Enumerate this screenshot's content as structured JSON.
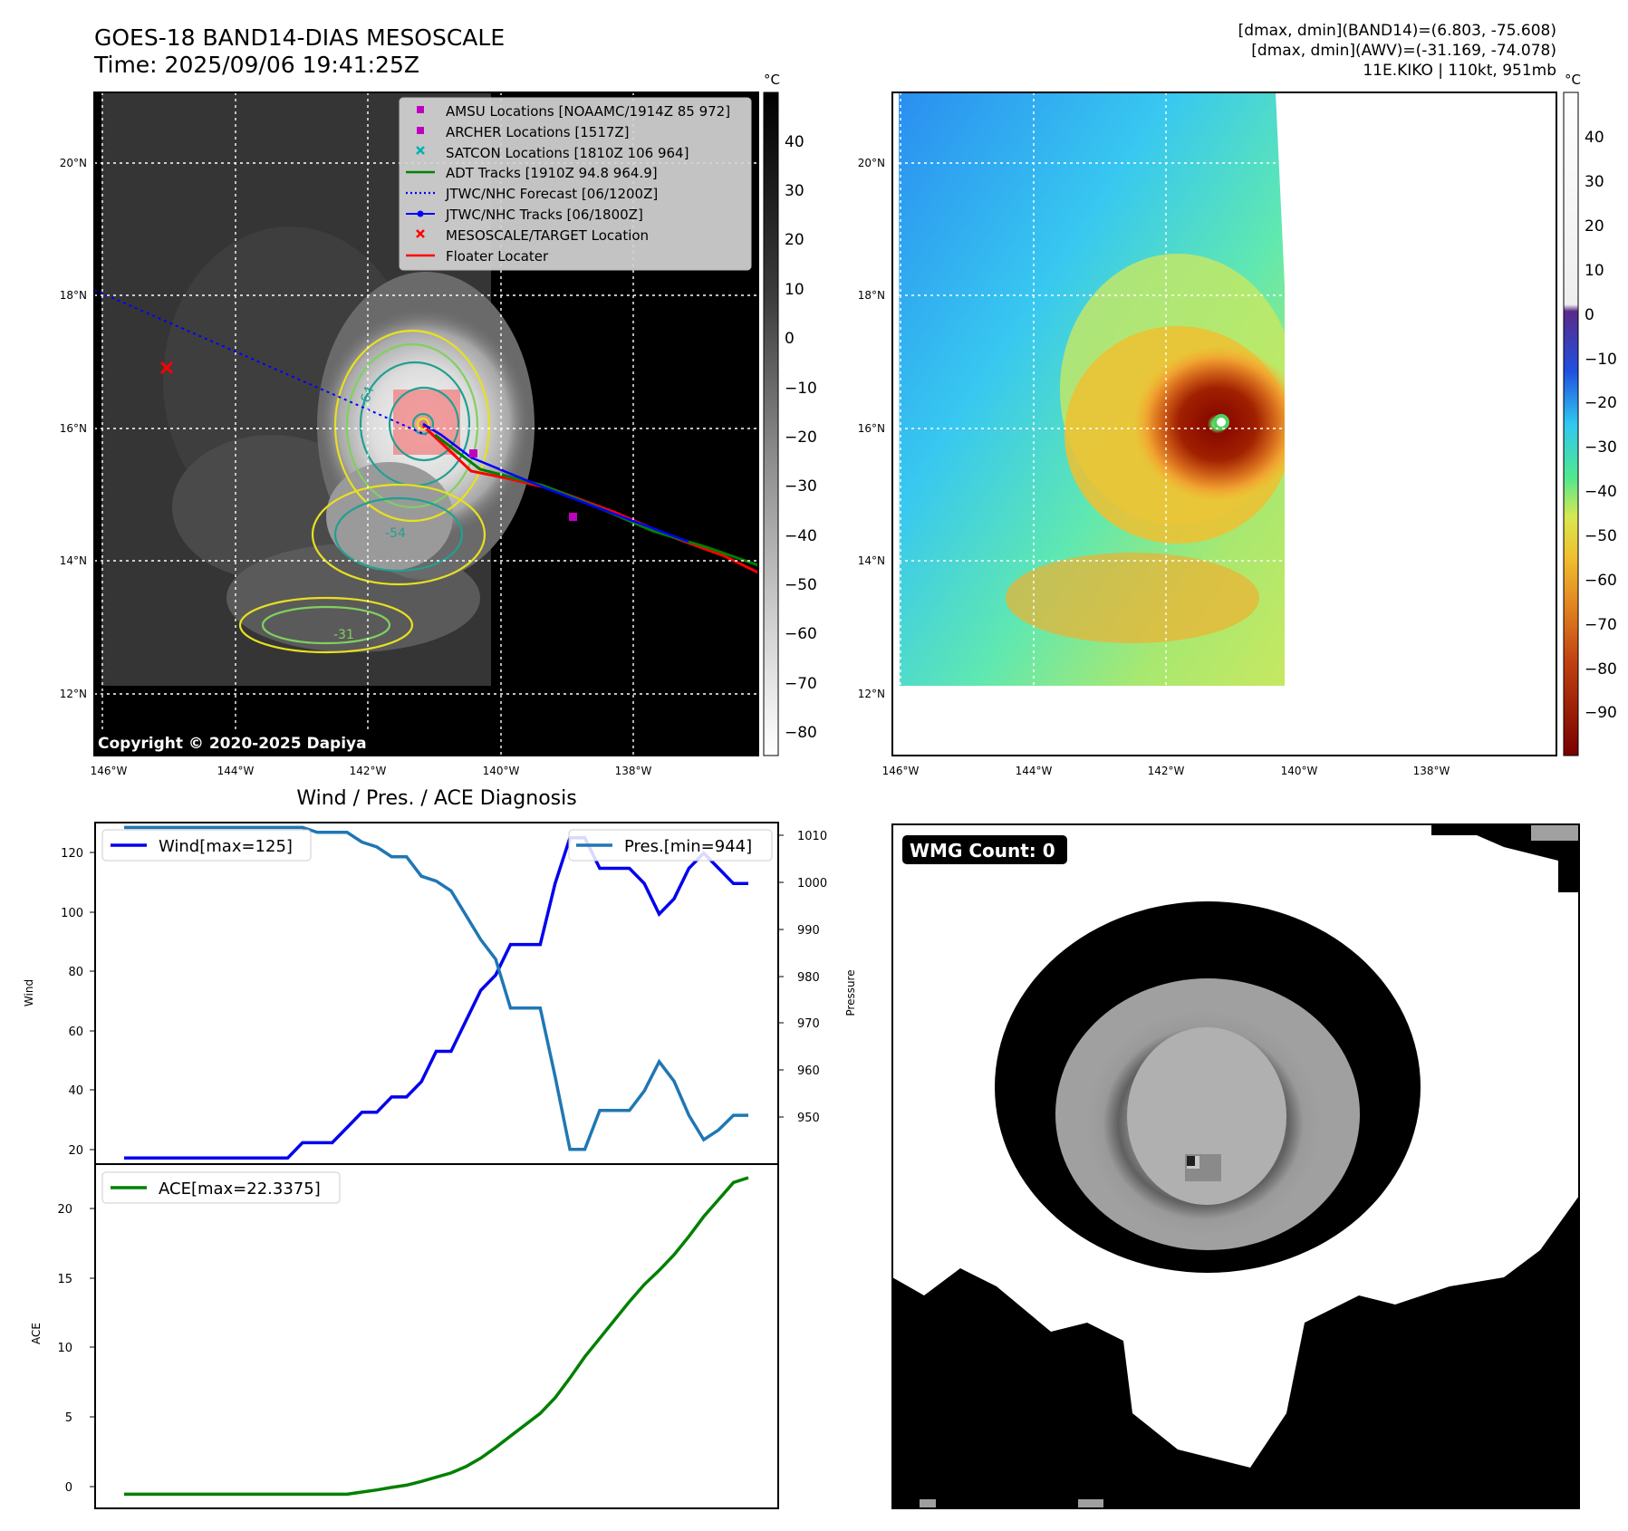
{
  "header": {
    "title_line1": "GOES-18 BAND14-DIAS MESOSCALE",
    "title_line2": "Time: 2025/09/06 19:41:25Z",
    "stats_line1": "[dmax, dmin](BAND14)=(6.803, -75.608)",
    "stats_line2": "[dmax, dmin](AWV)=(-31.169, -74.078)",
    "stats_line3": "11E.KIKO | 110kt, 951mb"
  },
  "copyright": "Copyright © 2020-2025 Dapiya",
  "ir_map": {
    "lat_ticks": [
      "20°N",
      "18°N",
      "16°N",
      "14°N",
      "12°N"
    ],
    "lon_ticks": [
      "146°W",
      "144°W",
      "142°W",
      "140°W",
      "138°W"
    ],
    "contour_labels": [
      "-64",
      "-54",
      "-31"
    ],
    "colorbar_unit": "°C",
    "colorbar_ticks": [
      "40",
      "30",
      "20",
      "10",
      "0",
      "−10",
      "−20",
      "−30",
      "−40",
      "−50",
      "−60",
      "−70",
      "−80"
    ],
    "legend": [
      {
        "label": "AMSU Locations [NOAAMC/1914Z 85 972]",
        "color": "#c000c0",
        "marker": "square"
      },
      {
        "label": "ARCHER Locations [1517Z]",
        "color": "#c000c0",
        "marker": "square"
      },
      {
        "label": "SATCON Locations [1810Z 106 964]",
        "color": "#00b0b0",
        "marker": "x"
      },
      {
        "label": "ADT Tracks [1910Z 94.8 964.9]",
        "color": "#008000",
        "marker": "line"
      },
      {
        "label": "JTWC/NHC Forecast [06/1200Z]",
        "color": "#0000ff",
        "marker": "dotted"
      },
      {
        "label": "JTWC/NHC Tracks [06/1800Z]",
        "color": "#0000ff",
        "marker": "line-dot"
      },
      {
        "label": "MESOSCALE/TARGET Location",
        "color": "#ff0000",
        "marker": "x"
      },
      {
        "label": "Floater Locater",
        "color": "#ff0000",
        "marker": "line"
      }
    ]
  },
  "awv_map": {
    "lat_ticks": [
      "20°N",
      "18°N",
      "16°N",
      "14°N",
      "12°N"
    ],
    "lon_ticks": [
      "146°W",
      "144°W",
      "142°W",
      "140°W",
      "138°W"
    ],
    "colorbar_unit": "°C",
    "colorbar_ticks": [
      "40",
      "30",
      "20",
      "10",
      "0",
      "−10",
      "−20",
      "−30",
      "−40",
      "−50",
      "−60",
      "−70",
      "−80",
      "−90"
    ]
  },
  "wmg": {
    "badge": "WMG Count: 0"
  },
  "chart_data": [
    {
      "type": "line",
      "title": "Wind / Pres. / ACE Diagnosis",
      "x": [
        0,
        1,
        2,
        3,
        4,
        5,
        6,
        7,
        8,
        9,
        10,
        11,
        12,
        13,
        14,
        15,
        16,
        17,
        18,
        19,
        20,
        21,
        22,
        23,
        24,
        25,
        26,
        27,
        28,
        29,
        30,
        31,
        32,
        33,
        34,
        35,
        36,
        37,
        38,
        39,
        40,
        41,
        42
      ],
      "ylabel": "Wind",
      "ylim": [
        18,
        130
      ],
      "yticks": [
        "20",
        "40",
        "60",
        "80",
        "100",
        "120"
      ],
      "y2label": "Pressure",
      "y2lim": [
        941,
        1011
      ],
      "y2ticks": [
        "950",
        "960",
        "970",
        "980",
        "990",
        "1000",
        "1010"
      ],
      "series": [
        {
          "name": "Wind[max=125]",
          "color": "#0000ee",
          "values": [
            20,
            20,
            20,
            20,
            20,
            20,
            20,
            20,
            20,
            20,
            20,
            20,
            25,
            25,
            25,
            30,
            35,
            35,
            40,
            40,
            45,
            55,
            55,
            65,
            75,
            80,
            90,
            90,
            90,
            110,
            125,
            125,
            115,
            115,
            115,
            110,
            100,
            105,
            115,
            120,
            115,
            110,
            110
          ]
        },
        {
          "name": "Pres.[min=944]",
          "color": "#1f77b4",
          "values": [
            1010,
            1010,
            1010,
            1010,
            1010,
            1010,
            1010,
            1010,
            1010,
            1010,
            1010,
            1010,
            1010,
            1009,
            1009,
            1009,
            1007,
            1006,
            1004,
            1004,
            1000,
            999,
            997,
            992,
            987,
            983,
            973,
            973,
            973,
            959,
            944,
            944,
            952,
            952,
            952,
            956,
            962,
            958,
            951,
            946,
            948,
            951,
            951
          ]
        }
      ]
    },
    {
      "type": "line",
      "x": [
        0,
        1,
        2,
        3,
        4,
        5,
        6,
        7,
        8,
        9,
        10,
        11,
        12,
        13,
        14,
        15,
        16,
        17,
        18,
        19,
        20,
        21,
        22,
        23,
        24,
        25,
        26,
        27,
        28,
        29,
        30,
        31,
        32,
        33,
        34,
        35,
        36,
        37,
        38,
        39,
        40,
        41,
        42
      ],
      "ylabel": "ACE",
      "ylim": [
        -1,
        23.3
      ],
      "yticks": [
        "0",
        "5",
        "10",
        "15",
        "20"
      ],
      "series": [
        {
          "name": "ACE[max=22.3375]",
          "color": "#008000",
          "values": [
            0,
            0,
            0,
            0,
            0,
            0,
            0,
            0,
            0,
            0,
            0,
            0,
            0,
            0,
            0,
            0,
            0.15,
            0.3,
            0.48,
            0.64,
            0.9,
            1.2,
            1.5,
            1.95,
            2.55,
            3.3,
            4.1,
            4.9,
            5.7,
            6.8,
            8.2,
            9.7,
            11.0,
            12.3,
            13.6,
            14.8,
            15.8,
            16.9,
            18.2,
            19.6,
            20.8,
            22.0,
            22.34
          ]
        }
      ]
    }
  ]
}
